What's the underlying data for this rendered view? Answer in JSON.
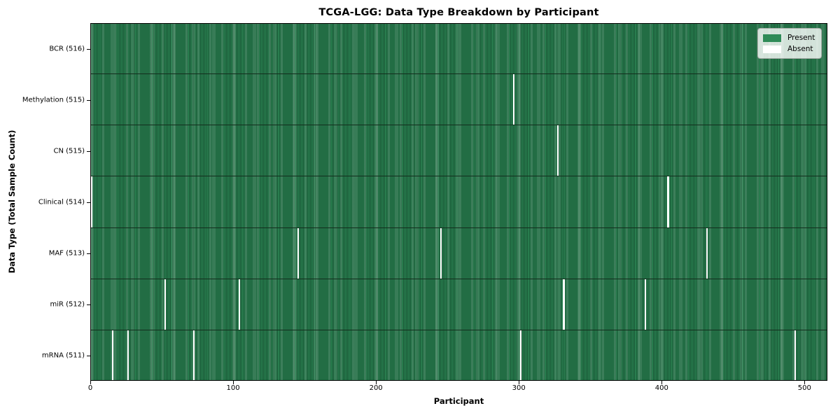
{
  "title": "TCGA-LGG: Data Type Breakdown by Participant",
  "chart_data": {
    "type": "heatmap",
    "title": "TCGA-LGG: Data Type Breakdown by Participant",
    "xlabel": "Participant",
    "ylabel": "Data Type (Total Sample Count)",
    "x_ticks": [
      0,
      100,
      200,
      300,
      400,
      500
    ],
    "x_range": [
      0,
      516
    ],
    "n_participants": 516,
    "grid": false,
    "colors": {
      "present": "#2e8b57",
      "absent": "#ffffff"
    },
    "legend": {
      "position": "upper right",
      "entries": [
        {
          "label": "Present",
          "color": "#2e8b57"
        },
        {
          "label": "Absent",
          "color": "#ffffff"
        }
      ]
    },
    "rows": [
      {
        "label": "BCR (516)",
        "data_type": "BCR",
        "present_count": 516,
        "absent_participants": []
      },
      {
        "label": "Methylation (515)",
        "data_type": "Methylation",
        "present_count": 515,
        "absent_participants": [
          296
        ]
      },
      {
        "label": "CN (515)",
        "data_type": "CN",
        "present_count": 515,
        "absent_participants": [
          327
        ]
      },
      {
        "label": "Clinical (514)",
        "data_type": "Clinical",
        "present_count": 514,
        "absent_participants": [
          0,
          404
        ]
      },
      {
        "label": "MAF (513)",
        "data_type": "MAF",
        "present_count": 513,
        "absent_participants": [
          145,
          245,
          431
        ]
      },
      {
        "label": "miR (512)",
        "data_type": "miR",
        "present_count": 512,
        "absent_participants": [
          52,
          104,
          331,
          388
        ]
      },
      {
        "label": "mRNA (511)",
        "data_type": "mRNA",
        "present_count": 511,
        "absent_participants": [
          15,
          26,
          72,
          301,
          493
        ]
      }
    ]
  }
}
